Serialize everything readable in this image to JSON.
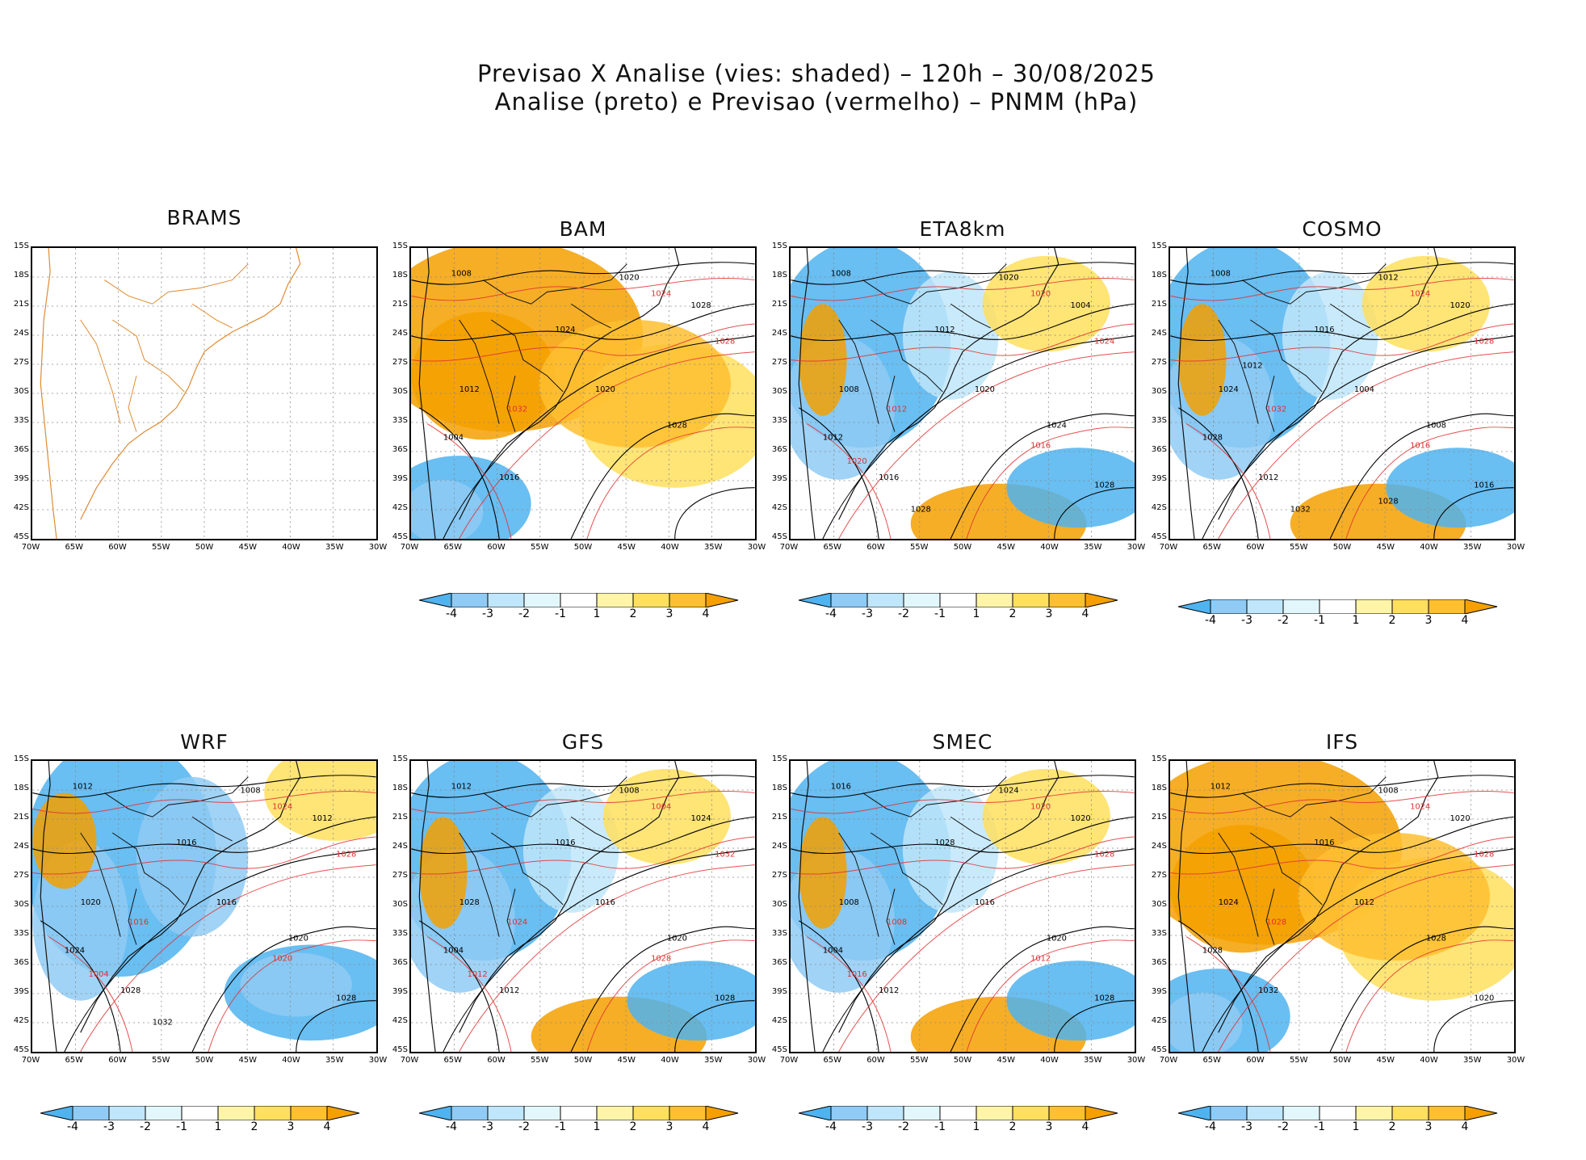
{
  "title": {
    "line1": "Previsao X Analise (vies: shaded) – 120h – 30/08/2025",
    "line2": "Analise (preto) e Previsao (vermelho) – PNMM (hPa)"
  },
  "lat_labels": [
    "15S",
    "18S",
    "21S",
    "24S",
    "27S",
    "30S",
    "33S",
    "36S",
    "39S",
    "42S",
    "45S"
  ],
  "lon_labels": [
    "70W",
    "65W",
    "60W",
    "55W",
    "50W",
    "45W",
    "40W",
    "35W",
    "30W"
  ],
  "colorbar": {
    "labels": [
      "-4",
      "-3",
      "-2",
      "-1",
      "1",
      "2",
      "3",
      "4"
    ],
    "colors": [
      "#4fb3f0",
      "#8fcbf5",
      "#bfe6fa",
      "#e2f7fc",
      "#ffffff",
      "#fff4a8",
      "#ffdf5e",
      "#ffc030",
      "#f5a000"
    ]
  },
  "panels": [
    {
      "name": "BRAMS",
      "has_data": false,
      "bias": "none",
      "iso_labels_black": [],
      "iso_labels_red": []
    },
    {
      "name": "BAM",
      "has_data": true,
      "bias": "warm",
      "iso_labels_black": [
        "1008",
        "1020",
        "1024",
        "1028",
        "1012",
        "1004",
        "1016",
        "1020",
        "1028"
      ],
      "iso_labels_red": [
        "1024",
        "1028",
        "1032"
      ]
    },
    {
      "name": "ETA8km",
      "has_data": true,
      "bias": "mixed",
      "iso_labels_black": [
        "1008",
        "1020",
        "1012",
        "1004",
        "1008",
        "1012",
        "1016",
        "1020",
        "1024",
        "1028",
        "1028"
      ],
      "iso_labels_red": [
        "1020",
        "1024",
        "1012",
        "1016",
        "1020"
      ]
    },
    {
      "name": "COSMO",
      "has_data": true,
      "bias": "mixed",
      "iso_labels_black": [
        "1008",
        "1012",
        "1016",
        "1020",
        "1024",
        "1028",
        "1012",
        "1004",
        "1008",
        "1016",
        "1032",
        "1028",
        "1012"
      ],
      "iso_labels_red": [
        "1024",
        "1028",
        "1032",
        "1016"
      ]
    },
    {
      "name": "WRF",
      "has_data": true,
      "bias": "cold",
      "iso_labels_black": [
        "1012",
        "1008",
        "1016",
        "1012",
        "1020",
        "1024",
        "1028",
        "1016",
        "1020",
        "1028",
        "1032"
      ],
      "iso_labels_red": [
        "1024",
        "1028",
        "1016",
        "1020",
        "1004"
      ]
    },
    {
      "name": "GFS",
      "has_data": true,
      "bias": "mixed",
      "iso_labels_black": [
        "1012",
        "1008",
        "1016",
        "1024",
        "1028",
        "1004",
        "1012",
        "1016",
        "1020",
        "1028"
      ],
      "iso_labels_red": [
        "1004",
        "1032",
        "1024",
        "1028",
        "1012"
      ]
    },
    {
      "name": "SMEC",
      "has_data": true,
      "bias": "mixed",
      "iso_labels_black": [
        "1016",
        "1024",
        "1028",
        "1020",
        "1008",
        "1004",
        "1012",
        "1016",
        "1020",
        "1028"
      ],
      "iso_labels_red": [
        "1020",
        "1028",
        "1008",
        "1012",
        "1016"
      ]
    },
    {
      "name": "IFS",
      "has_data": true,
      "bias": "warm",
      "iso_labels_black": [
        "1012",
        "1008",
        "1016",
        "1020",
        "1024",
        "1028",
        "1032",
        "1012",
        "1028",
        "1020"
      ],
      "iso_labels_red": [
        "1024",
        "1028",
        "1028"
      ]
    }
  ],
  "map_colors": {
    "coast": "#e08a30",
    "black_iso": "#000000",
    "red_iso": "#e03030"
  }
}
